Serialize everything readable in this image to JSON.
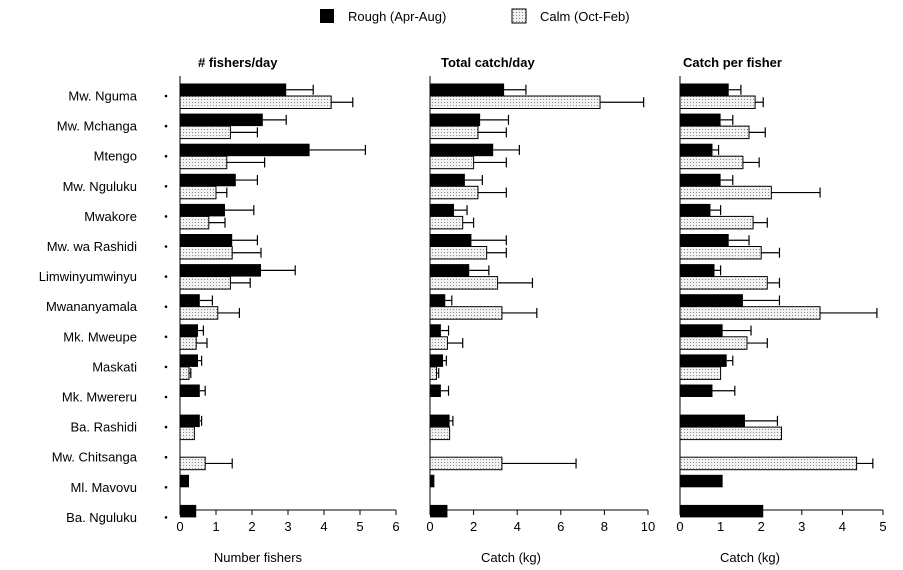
{
  "chart_data": {
    "type": "bar",
    "orientation": "horizontal",
    "legend": {
      "placement": "top-center",
      "items": [
        {
          "label": "Rough (Apr-Aug)",
          "color": "#000000",
          "pattern": "solid"
        },
        {
          "label": "Calm (Oct-Feb)",
          "color": "#dddddd",
          "pattern": "dotted"
        }
      ]
    },
    "categories": [
      "Mw. Nguma",
      "Mw. Mchanga",
      "Mtengo",
      "Mw. Nguluku",
      "Mwakore",
      "Mw. wa Rashidi",
      "Limwinyumwinyu",
      "Mwananyamala",
      "Mk. Mweupe",
      "Maskati",
      "Mk. Mwereru",
      "Ba. Rashidi",
      "Mw. Chitsanga",
      "Ml. Mavovu",
      "Ba. Nguluku"
    ],
    "panels": [
      {
        "title": "# fishers/day",
        "xlabel": "Number fishers",
        "xlim": [
          0,
          6
        ],
        "ticks": [
          0,
          1,
          2,
          3,
          4,
          5,
          6
        ],
        "series": [
          {
            "name": "Rough (Apr-Aug)",
            "values": [
              2.95,
              2.3,
              3.6,
              1.55,
              1.25,
              1.45,
              2.25,
              0.55,
              0.5,
              0.5,
              0.55,
              0.55,
              null,
              0.25,
              0.45
            ],
            "errors": [
              0.75,
              0.65,
              1.55,
              0.6,
              0.8,
              0.7,
              0.95,
              0.35,
              0.15,
              0.1,
              0.15,
              0.05,
              null,
              null,
              null
            ]
          },
          {
            "name": "Calm (Oct-Feb)",
            "values": [
              4.2,
              1.4,
              1.3,
              1.0,
              0.8,
              1.45,
              1.4,
              1.05,
              0.45,
              0.25,
              null,
              0.4,
              0.7,
              null,
              null
            ],
            "errors": [
              0.6,
              0.75,
              1.05,
              0.3,
              0.45,
              0.8,
              0.55,
              0.6,
              0.3,
              0.05,
              null,
              null,
              0.75,
              null,
              null
            ]
          }
        ]
      },
      {
        "title": "Total catch/day",
        "xlabel": "Catch (kg)",
        "xlim": [
          0,
          10
        ],
        "ticks": [
          0,
          2,
          4,
          6,
          8,
          10
        ],
        "series": [
          {
            "name": "Rough (Apr-Aug)",
            "values": [
              3.4,
              2.3,
              2.9,
              1.6,
              1.1,
              1.9,
              1.8,
              0.7,
              0.5,
              0.6,
              0.5,
              0.9,
              null,
              0.2,
              0.8
            ],
            "errors": [
              1.0,
              1.3,
              1.2,
              0.8,
              0.6,
              1.6,
              0.9,
              0.3,
              0.35,
              0.15,
              0.35,
              0.15,
              null,
              null,
              null
            ]
          },
          {
            "name": "Calm (Oct-Feb)",
            "values": [
              7.8,
              2.2,
              2.0,
              2.2,
              1.5,
              2.6,
              3.1,
              3.3,
              0.8,
              0.3,
              null,
              0.9,
              3.3,
              null,
              null
            ],
            "errors": [
              2.0,
              1.3,
              1.5,
              1.3,
              0.5,
              0.9,
              1.6,
              1.6,
              0.7,
              0.1,
              null,
              null,
              3.4,
              null,
              null
            ]
          }
        ]
      },
      {
        "title": "Catch per fisher",
        "xlabel": "Catch (kg)",
        "xlim": [
          0,
          5
        ],
        "ticks": [
          0,
          1,
          2,
          3,
          4,
          5
        ],
        "series": [
          {
            "name": "Rough (Apr-Aug)",
            "values": [
              1.2,
              1.0,
              0.8,
              1.0,
              0.75,
              1.2,
              0.85,
              1.55,
              1.05,
              1.15,
              0.8,
              1.6,
              null,
              1.05,
              2.05
            ],
            "errors": [
              0.3,
              0.3,
              0.15,
              0.3,
              0.25,
              0.5,
              0.15,
              0.9,
              0.7,
              0.15,
              0.55,
              0.8,
              null,
              null,
              null
            ]
          },
          {
            "name": "Calm (Oct-Feb)",
            "values": [
              1.85,
              1.7,
              1.55,
              2.25,
              1.8,
              2.0,
              2.15,
              3.45,
              1.65,
              1.0,
              null,
              2.5,
              4.35,
              null,
              null
            ],
            "errors": [
              0.2,
              0.4,
              0.4,
              1.2,
              0.35,
              0.45,
              0.3,
              1.4,
              0.5,
              null,
              null,
              null,
              0.4,
              null,
              null
            ]
          }
        ]
      }
    ]
  }
}
